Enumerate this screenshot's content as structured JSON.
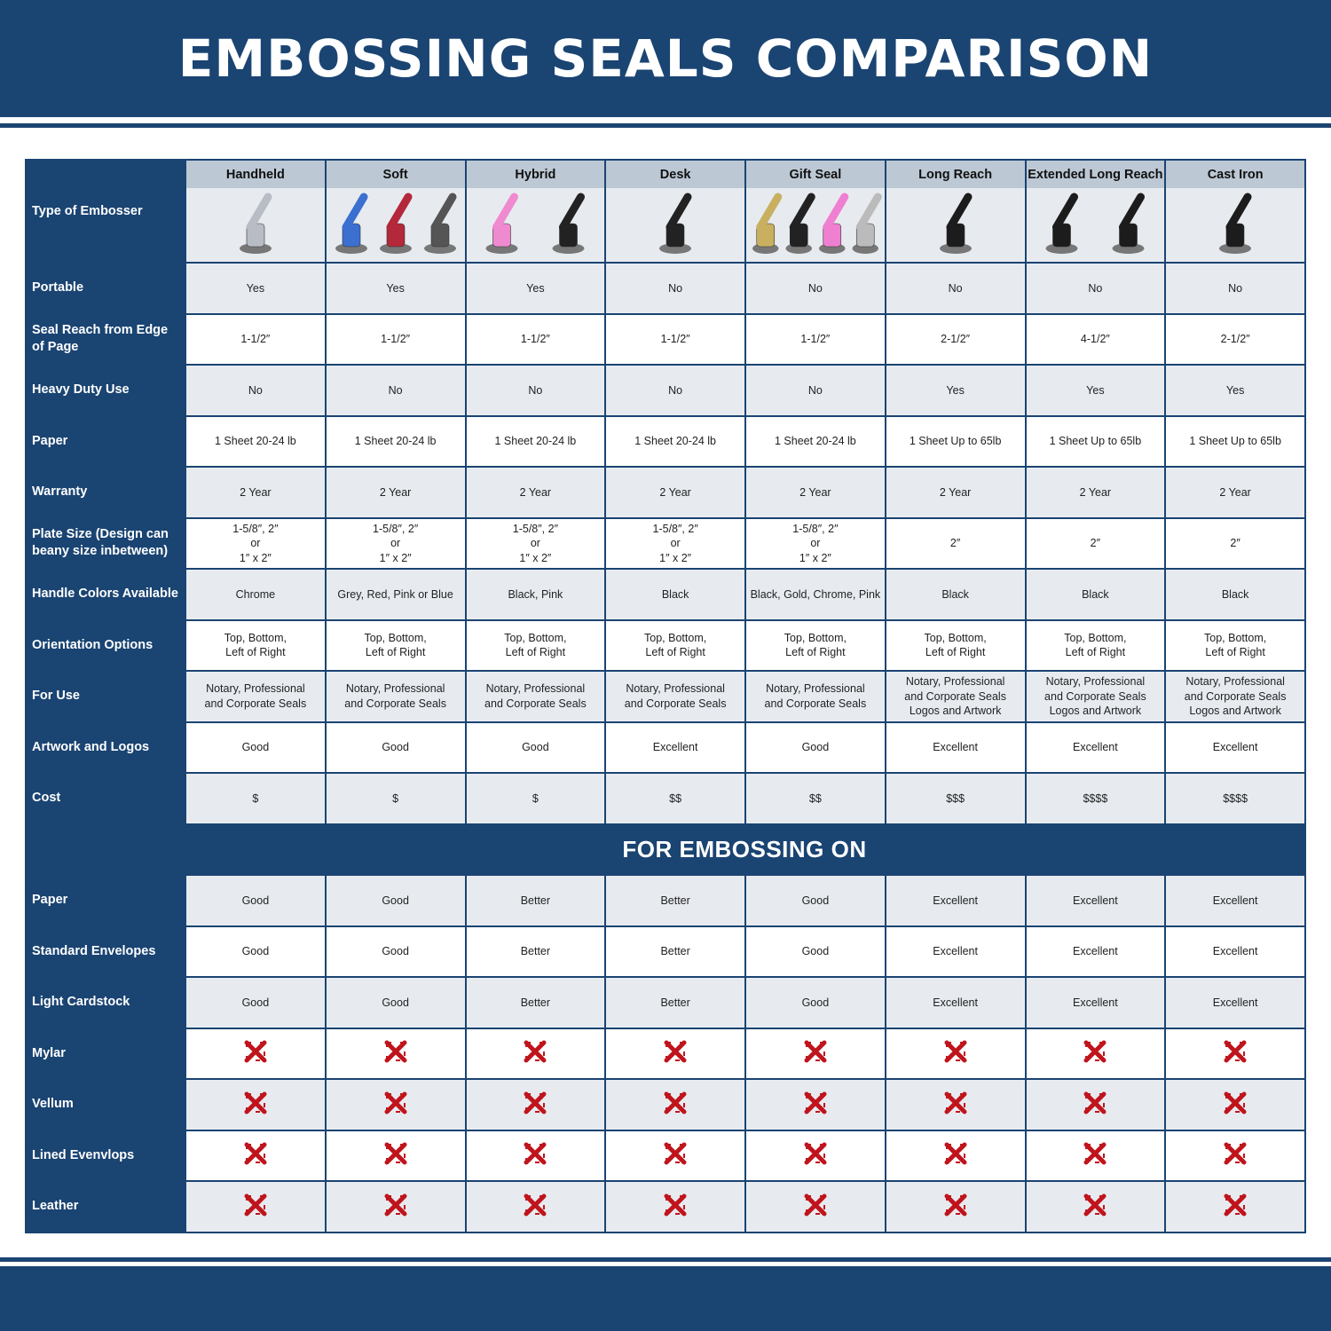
{
  "title": "EMBOSSING SEALS COMPARISON",
  "colors": {
    "brand": "#1a4472",
    "header_cell": "#bcc8d4",
    "row_alt": "#e7ebf0",
    "cross": "#c0141c"
  },
  "type_label": "Type of Embosser",
  "columns": [
    {
      "name": "Handheld",
      "image": "handheld-embosser-chrome"
    },
    {
      "name": "Soft",
      "image": "soft-embossers-blue-red-grey"
    },
    {
      "name": "Hybrid",
      "image": "hybrid-embossers-pink-black"
    },
    {
      "name": "Desk",
      "image": "desk-embosser-black"
    },
    {
      "name": "Gift Seal",
      "image": "gift-seals-gold-black-pink-chrome"
    },
    {
      "name": "Long Reach",
      "image": "long-reach-embosser-black"
    },
    {
      "name": "Extended Long Reach",
      "image": "extended-long-reach-embossers-black"
    },
    {
      "name": "Cast Iron",
      "image": "cast-iron-embosser-black"
    }
  ],
  "rows": [
    {
      "label": "Portable",
      "values": [
        "Yes",
        "Yes",
        "Yes",
        "No",
        "No",
        "No",
        "No",
        "No"
      ]
    },
    {
      "label": "Seal Reach from Edge of Page",
      "values": [
        "1-1/2″",
        "1-1/2″",
        "1-1/2″",
        "1-1/2″",
        "1-1/2″",
        "2-1/2″",
        "4-1/2″",
        "2-1/2″"
      ]
    },
    {
      "label": "Heavy Duty Use",
      "values": [
        "No",
        "No",
        "No",
        "No",
        "No",
        "Yes",
        "Yes",
        "Yes"
      ]
    },
    {
      "label": "Paper",
      "values": [
        "1 Sheet 20-24 lb",
        "1 Sheet 20-24 lb",
        "1 Sheet 20-24 lb",
        "1 Sheet 20-24 lb",
        "1 Sheet 20-24 lb",
        "1 Sheet Up to 65lb",
        "1 Sheet Up to 65lb",
        "1 Sheet Up to 65lb"
      ]
    },
    {
      "label": "Warranty",
      "values": [
        "2 Year",
        "2 Year",
        "2 Year",
        "2 Year",
        "2 Year",
        "2 Year",
        "2 Year",
        "2 Year"
      ]
    },
    {
      "label": "Plate Size (Design can beany size inbetween)",
      "values": [
        "1-5/8″, 2″\nor\n1″ x 2″",
        "1-5/8″, 2″\nor\n1″ x 2″",
        "1-5/8″, 2″\nor\n1″ x 2″",
        "1-5/8″, 2″\nor\n1″ x 2″",
        "1-5/8″, 2″\nor\n1″ x 2″",
        "2″",
        "2″",
        "2″"
      ]
    },
    {
      "label": "Handle Colors Available",
      "values": [
        "Chrome",
        "Grey, Red, Pink or Blue",
        "Black, Pink",
        "Black",
        "Black, Gold, Chrome, Pink",
        "Black",
        "Black",
        "Black"
      ]
    },
    {
      "label": "Orientation Options",
      "values": [
        "Top, Bottom,\nLeft of Right",
        "Top, Bottom,\nLeft of Right",
        "Top, Bottom,\nLeft of Right",
        "Top, Bottom,\nLeft of Right",
        "Top, Bottom,\nLeft of Right",
        "Top, Bottom,\nLeft of Right",
        "Top, Bottom,\nLeft of Right",
        "Top, Bottom,\nLeft of Right"
      ]
    },
    {
      "label": "For Use",
      "values": [
        "Notary, Professional\nand Corporate Seals",
        "Notary, Professional\nand Corporate Seals",
        "Notary, Professional\nand Corporate Seals",
        "Notary, Professional\nand Corporate Seals",
        "Notary, Professional\nand Corporate Seals",
        "Notary, Professional\nand Corporate Seals\nLogos and Artwork",
        "Notary, Professional\nand Corporate Seals\nLogos and Artwork",
        "Notary, Professional\nand Corporate Seals\nLogos and Artwork"
      ]
    },
    {
      "label": "Artwork and Logos",
      "values": [
        "Good",
        "Good",
        "Good",
        "Excellent",
        "Good",
        "Excellent",
        "Excellent",
        "Excellent"
      ]
    },
    {
      "label": "Cost",
      "values": [
        "$",
        "$",
        "$",
        "$$",
        "$$",
        "$$$",
        "$$$$",
        "$$$$"
      ]
    }
  ],
  "section_title": "FOR EMBOSSING ON",
  "embossing_rows": [
    {
      "label": "Paper",
      "values": [
        "Good",
        "Good",
        "Better",
        "Better",
        "Good",
        "Excellent",
        "Excellent",
        "Excellent"
      ]
    },
    {
      "label": "Standard Envelopes",
      "values": [
        "Good",
        "Good",
        "Better",
        "Better",
        "Good",
        "Excellent",
        "Excellent",
        "Excellent"
      ]
    },
    {
      "label": "Light Cardstock",
      "values": [
        "Good",
        "Good",
        "Better",
        "Better",
        "Good",
        "Excellent",
        "Excellent",
        "Excellent"
      ]
    },
    {
      "label": "Mylar",
      "values": [
        "cross",
        "cross",
        "cross",
        "cross",
        "cross",
        "cross",
        "cross",
        "cross"
      ]
    },
    {
      "label": "Vellum",
      "values": [
        "cross",
        "cross",
        "cross",
        "cross",
        "cross",
        "cross",
        "cross",
        "cross"
      ]
    },
    {
      "label": "Lined Evenvlops",
      "values": [
        "cross",
        "cross",
        "cross",
        "cross",
        "cross",
        "cross",
        "cross",
        "cross"
      ]
    },
    {
      "label": "Leather",
      "values": [
        "cross",
        "cross",
        "cross",
        "cross",
        "cross",
        "cross",
        "cross",
        "cross"
      ]
    }
  ]
}
